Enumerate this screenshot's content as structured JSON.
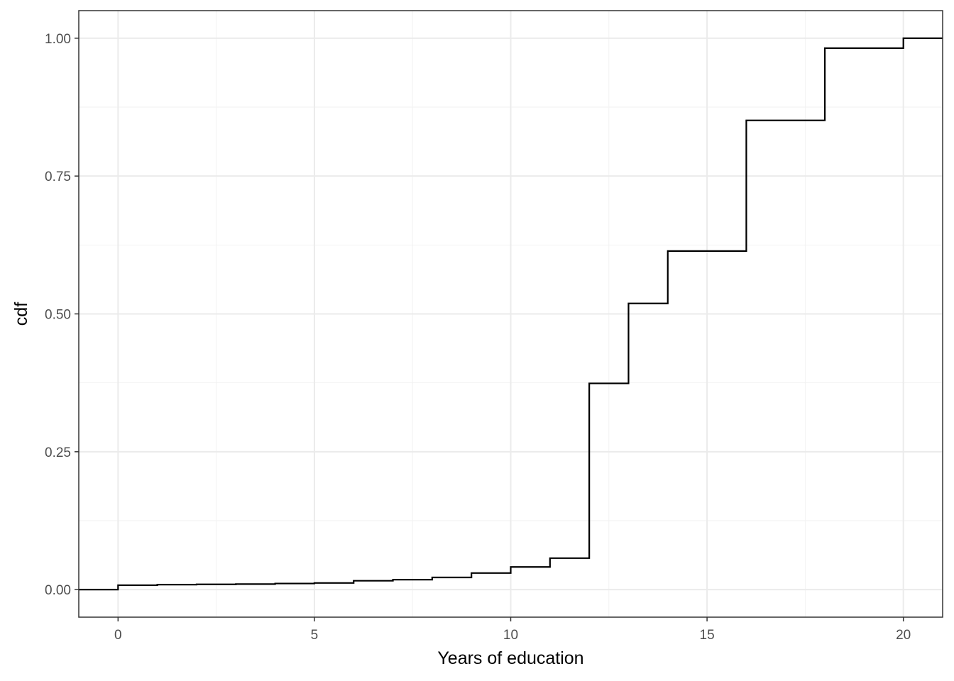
{
  "chart_data": {
    "type": "line",
    "style": "step",
    "title": "",
    "xlabel": "Years of education",
    "ylabel": "cdf",
    "xlim": [
      -1,
      21
    ],
    "ylim": [
      -0.05,
      1.05
    ],
    "x_ticks": [
      0,
      5,
      10,
      15,
      20
    ],
    "x_tick_labels": [
      "0",
      "5",
      "10",
      "15",
      "20"
    ],
    "y_ticks": [
      0,
      0.25,
      0.5,
      0.75,
      1.0
    ],
    "y_tick_labels": [
      "0.00",
      "0.25",
      "0.50",
      "0.75",
      "1.00"
    ],
    "grid": true,
    "legend": "none",
    "line_color": "#000000",
    "x": [
      -1,
      0,
      1,
      2,
      3,
      4,
      5,
      6,
      7,
      8,
      9,
      10,
      11,
      12,
      13,
      14,
      16,
      18,
      20
    ],
    "y": [
      0.0,
      0.008,
      0.009,
      0.0095,
      0.01,
      0.011,
      0.012,
      0.016,
      0.018,
      0.022,
      0.03,
      0.041,
      0.057,
      0.374,
      0.519,
      0.614,
      0.851,
      0.982,
      1.0
    ]
  }
}
